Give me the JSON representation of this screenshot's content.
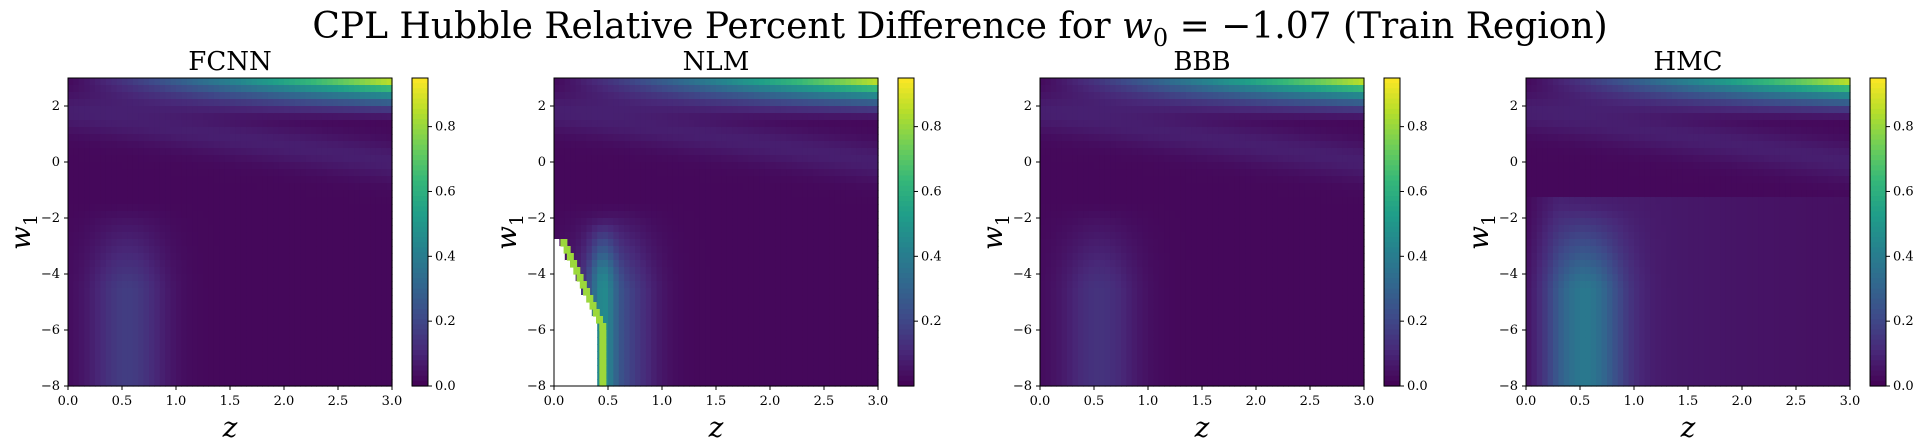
{
  "figure": {
    "title": "CPL Hubble Relative Percent Difference for w₀ = −1.07 (Train Region)",
    "title_parts": {
      "prefix": "CPL Hubble Relative Percent Difference for ",
      "var": "w",
      "sub": "0",
      "suffix": " = −1.07 (Train Region)"
    },
    "colormap": "viridis"
  },
  "chart_data": [
    {
      "type": "heatmap",
      "title": "FCNN",
      "xlabel": "z",
      "ylabel": "w",
      "ylabel_sub": "1",
      "xlim": [
        0.0,
        3.0
      ],
      "ylim": [
        -8,
        3
      ],
      "xticks": [
        "0.0",
        "0.5",
        "1.0",
        "1.5",
        "2.0",
        "2.5",
        "3.0"
      ],
      "yticks": [
        "−8",
        "−6",
        "−4",
        "−2",
        "0",
        "2"
      ],
      "colorbar": {
        "range": [
          0.0,
          0.95
        ],
        "ticks": [
          "0.0",
          "0.2",
          "0.4",
          "0.6",
          "0.8"
        ]
      },
      "features": {
        "corner_peak": 0.95,
        "band_dark": 0.02,
        "low_z_blob": 0.15,
        "mask_lower_left": false
      }
    },
    {
      "type": "heatmap",
      "title": "NLM",
      "xlabel": "z",
      "ylabel": "w",
      "ylabel_sub": "1",
      "xlim": [
        0.0,
        3.0
      ],
      "ylim": [
        -8,
        3
      ],
      "xticks": [
        "0.0",
        "0.5",
        "1.0",
        "1.5",
        "2.0",
        "2.5",
        "3.0"
      ],
      "yticks": [
        "−8",
        "−6",
        "−4",
        "−2",
        "0",
        "2"
      ],
      "colorbar": {
        "range": [
          0.0,
          0.95
        ],
        "ticks": [
          "0.2",
          "0.4",
          "0.6",
          "0.8"
        ]
      },
      "features": {
        "corner_peak": 0.95,
        "band_dark": 0.02,
        "low_z_blob": 0.2,
        "mask_lower_left": true
      }
    },
    {
      "type": "heatmap",
      "title": "BBB",
      "xlabel": "z",
      "ylabel": "w",
      "ylabel_sub": "1",
      "xlim": [
        0.0,
        3.0
      ],
      "ylim": [
        -8,
        3
      ],
      "xticks": [
        "0.0",
        "0.5",
        "1.0",
        "1.5",
        "2.0",
        "2.5",
        "3.0"
      ],
      "yticks": [
        "−8",
        "−6",
        "−4",
        "−2",
        "0",
        "2"
      ],
      "colorbar": {
        "range": [
          0.0,
          0.95
        ],
        "ticks": [
          "0.0",
          "0.2",
          "0.4",
          "0.6",
          "0.8"
        ]
      },
      "features": {
        "corner_peak": 0.95,
        "band_dark": 0.02,
        "low_z_blob": 0.12,
        "mask_lower_left": false
      }
    },
    {
      "type": "heatmap",
      "title": "HMC",
      "xlabel": "z",
      "ylabel": "w",
      "ylabel_sub": "1",
      "xlim": [
        0.0,
        3.0
      ],
      "ylim": [
        -8,
        3
      ],
      "xticks": [
        "0.0",
        "0.5",
        "1.0",
        "1.5",
        "2.0",
        "2.5",
        "3.0"
      ],
      "yticks": [
        "−8",
        "−6",
        "−4",
        "−2",
        "0",
        "2"
      ],
      "colorbar": {
        "range": [
          0.0,
          0.95
        ],
        "ticks": [
          "0.0",
          "0.2",
          "0.4",
          "0.6",
          "0.8"
        ]
      },
      "features": {
        "corner_peak": 0.95,
        "band_dark": 0.02,
        "low_z_blob": 0.3,
        "mask_lower_left": false
      }
    }
  ]
}
